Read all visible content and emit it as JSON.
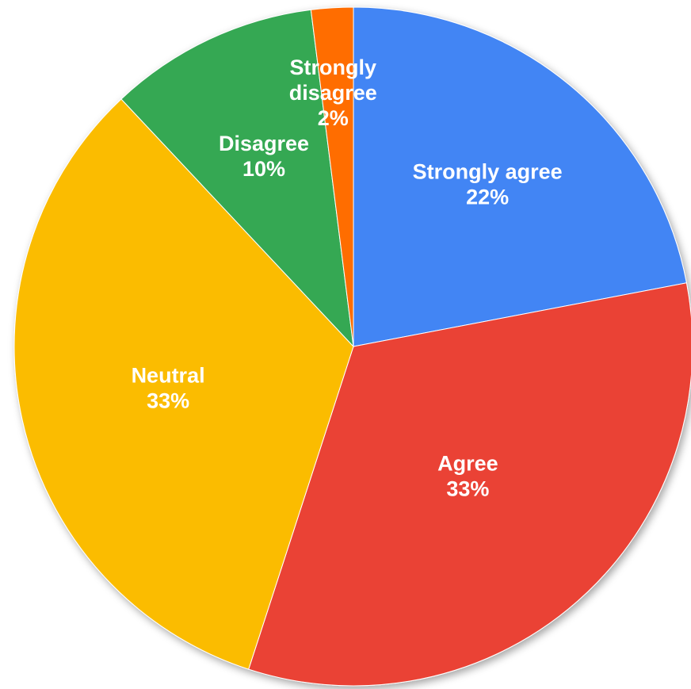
{
  "chart_data": {
    "type": "pie",
    "title": "",
    "slices": [
      {
        "label": "Strongly agree",
        "value": 22,
        "value_label": "22%",
        "color": "#4285F4"
      },
      {
        "label": "Agree",
        "value": 33,
        "value_label": "33%",
        "color": "#EA4335"
      },
      {
        "label": "Neutral",
        "value": 33,
        "value_label": "33%",
        "color": "#FBBC04"
      },
      {
        "label": "Disagree",
        "value": 10,
        "value_label": "10%",
        "color": "#34A853"
      },
      {
        "label": "Strongly disagree",
        "value": 2,
        "value_label": "2%",
        "color": "#FF6D01"
      }
    ],
    "start_angle": "12 o'clock",
    "direction": "clockwise",
    "legend": "none",
    "labels_inside_slices": true
  }
}
